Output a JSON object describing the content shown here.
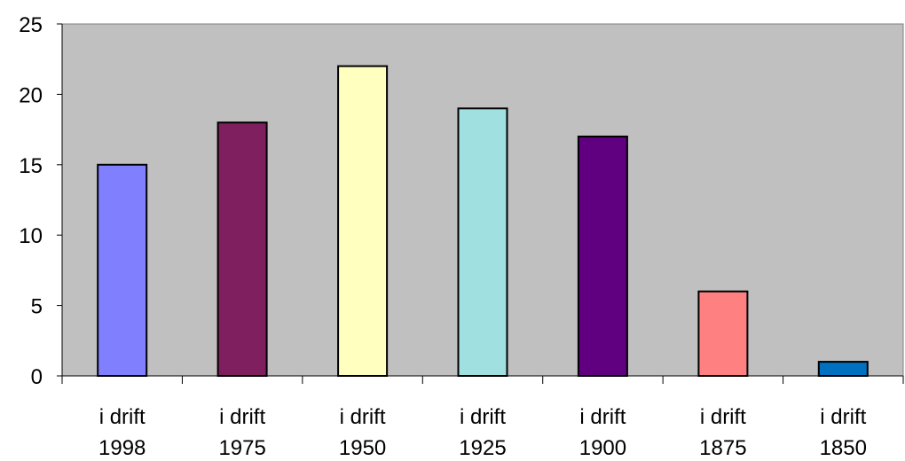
{
  "chart_data": {
    "type": "bar",
    "title": "",
    "xlabel": "",
    "ylabel": "",
    "ylim": [
      0,
      25
    ],
    "yticks": [
      0,
      5,
      10,
      15,
      20,
      25
    ],
    "grid": false,
    "legend": "none",
    "plot_background": "#C0C0C0",
    "categories": [
      [
        "i drift",
        "1998"
      ],
      [
        "i drift",
        "1975"
      ],
      [
        "i drift",
        "1950"
      ],
      [
        "i drift",
        "1925"
      ],
      [
        "i drift",
        "1900"
      ],
      [
        "i drift",
        "1875"
      ],
      [
        "i drift",
        "1850"
      ]
    ],
    "values": [
      15,
      18,
      22,
      19,
      17,
      6,
      1
    ],
    "bar_colors": [
      "#8080FF",
      "#7F1F5F",
      "#FFFFC0",
      "#A0E0E0",
      "#600080",
      "#FF8080",
      "#0070C0"
    ]
  }
}
